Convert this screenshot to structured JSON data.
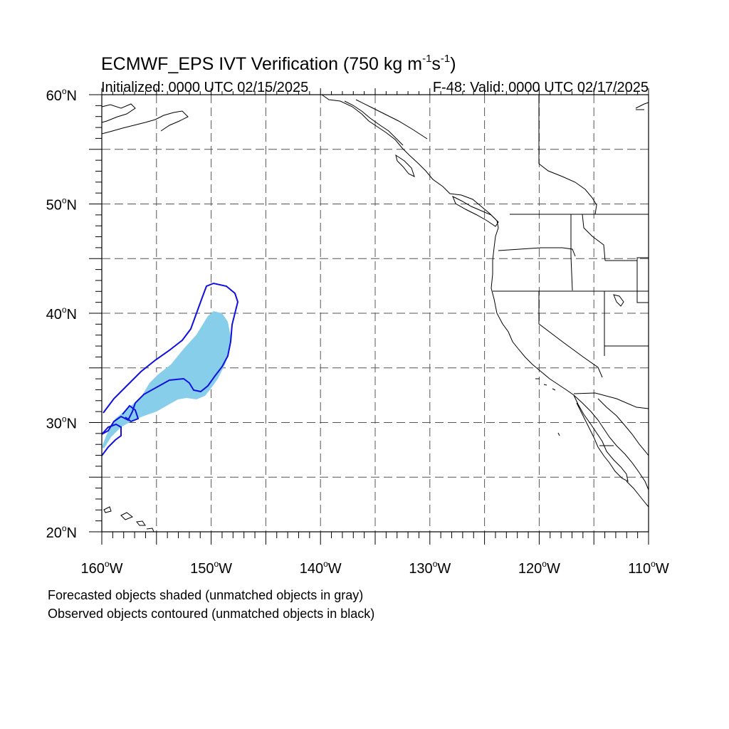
{
  "title": {
    "main": "ECMWF_EPS IVT Verification (750 kg m",
    "exp1": "-1",
    "mid": "s",
    "exp2": "-1",
    "close": ")"
  },
  "subtitle_left": "Initialized: 0000 UTC 02/15/2025",
  "subtitle_right": "F-48: Valid: 0000 UTC 02/17/2025",
  "map": {
    "lon_range": [
      -160,
      -110
    ],
    "lat_range": [
      20,
      60
    ],
    "lon_ticks": [
      {
        "value": -160,
        "label": "160",
        "hemi": "W"
      },
      {
        "value": -150,
        "label": "150",
        "hemi": "W"
      },
      {
        "value": -140,
        "label": "140",
        "hemi": "W"
      },
      {
        "value": -130,
        "label": "130",
        "hemi": "W"
      },
      {
        "value": -120,
        "label": "120",
        "hemi": "W"
      },
      {
        "value": -110,
        "label": "110",
        "hemi": "W"
      }
    ],
    "lat_ticks": [
      {
        "value": 20,
        "label": "20",
        "hemi": "N"
      },
      {
        "value": 30,
        "label": "30",
        "hemi": "N"
      },
      {
        "value": 40,
        "label": "40",
        "hemi": "N"
      },
      {
        "value": 50,
        "label": "50",
        "hemi": "N"
      },
      {
        "value": 60,
        "label": "60",
        "hemi": "N"
      }
    ],
    "grid_lons": [
      -155,
      -150,
      -145,
      -140,
      -135,
      -130,
      -125,
      -120,
      -115
    ],
    "grid_lats": [
      25,
      30,
      35,
      40,
      45,
      50,
      55
    ],
    "forecast_color": "#87ceeb",
    "observed_color": "#1010e0"
  },
  "legend": {
    "line1": "Forecasted objects shaded (unmatched objects in gray)",
    "line2": "Observed objects contoured (unmatched objects in black)"
  }
}
